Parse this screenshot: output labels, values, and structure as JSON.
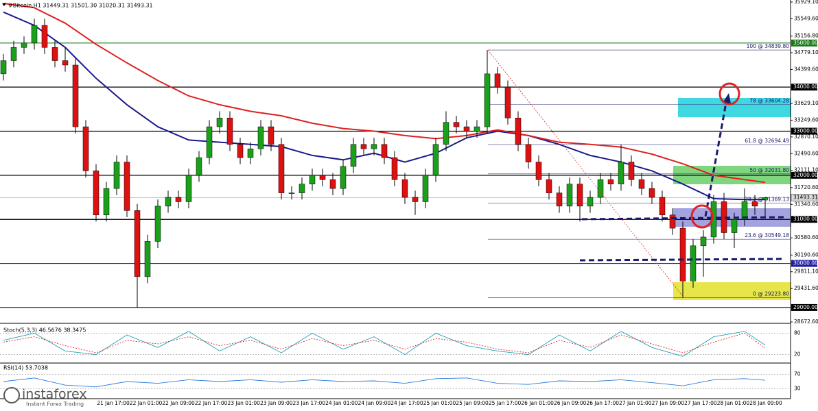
{
  "chart_data": {
    "type": "candlestick",
    "title": "#Bitcoin,H1  31449.31 31501.30 31020.31 31493.31",
    "ylim": [
      28672.6,
      35929.1
    ],
    "yticks": [
      {
        "value": 35929.1,
        "label": "35929.10"
      },
      {
        "value": 35549.6,
        "label": "35549.60"
      },
      {
        "value": 35156.8,
        "label": "35156.80"
      },
      {
        "value": 34779.1,
        "label": "34779.10"
      },
      {
        "value": 34399.6,
        "label": "34399.60"
      },
      {
        "value": 33629.1,
        "label": "33629.10"
      },
      {
        "value": 33249.6,
        "label": "33249.60"
      },
      {
        "value": 32870.1,
        "label": "32870.10"
      },
      {
        "value": 32490.6,
        "label": "32490.60"
      },
      {
        "value": 32111.1,
        "label": "32111.10"
      },
      {
        "value": 31720.6,
        "label": "31720.60"
      },
      {
        "value": 31340.6,
        "label": "31340.60"
      },
      {
        "value": 30580.6,
        "label": "30580.60"
      },
      {
        "value": 30190.6,
        "label": "30190.60"
      },
      {
        "value": 29811.1,
        "label": "29811.10"
      },
      {
        "value": 29431.6,
        "label": "29431.60"
      },
      {
        "value": 28672.6,
        "label": "28672.60"
      }
    ],
    "categories": [
      "21 Jan 17:00",
      "22 Jan 01:00",
      "22 Jan 09:00",
      "22 Jan 17:00",
      "23 Jan 01:00",
      "23 Jan 09:00",
      "23 Jan 17:00",
      "24 Jan 01:00",
      "24 Jan 09:00",
      "24 Jan 17:00",
      "25 Jan 01:00",
      "25 Jan 09:00",
      "25 Jan 17:00",
      "26 Jan 01:00",
      "26 Jan 09:00",
      "26 Jan 17:00",
      "27 Jan 01:00",
      "27 Jan 09:00",
      "27 Jan 17:00",
      "28 Jan 01:00",
      "28 Jan 09:00"
    ],
    "up_color": "#1aa01a",
    "down_color": "#dd1111",
    "ohlc": [
      [
        34300,
        34750,
        34150,
        34600
      ],
      [
        34600,
        35050,
        34450,
        34900
      ],
      [
        34900,
        35150,
        34750,
        35000
      ],
      [
        35000,
        35550,
        34850,
        35400
      ],
      [
        35400,
        35550,
        34750,
        34900
      ],
      [
        34900,
        35050,
        34450,
        34600
      ],
      [
        34600,
        34900,
        34350,
        34500
      ],
      [
        34500,
        34650,
        32950,
        33100
      ],
      [
        33100,
        33250,
        31950,
        32100
      ],
      [
        32100,
        32250,
        30950,
        31100
      ],
      [
        31100,
        31850,
        30950,
        31700
      ],
      [
        31700,
        32450,
        31550,
        32300
      ],
      [
        32300,
        32450,
        31050,
        31200
      ],
      [
        31200,
        31350,
        28990,
        29700
      ],
      [
        29700,
        30650,
        29550,
        30500
      ],
      [
        30500,
        31450,
        30350,
        31300
      ],
      [
        31300,
        31650,
        31150,
        31500
      ],
      [
        31500,
        31650,
        31250,
        31400
      ],
      [
        31400,
        32150,
        31250,
        32000
      ],
      [
        32000,
        32550,
        31850,
        32400
      ],
      [
        32400,
        33250,
        32250,
        33100
      ],
      [
        33100,
        33450,
        32950,
        33300
      ],
      [
        33300,
        33450,
        32550,
        32700
      ],
      [
        32700,
        32850,
        32250,
        32400
      ],
      [
        32400,
        32750,
        32250,
        32600
      ],
      [
        32600,
        33250,
        32450,
        33100
      ],
      [
        33100,
        33250,
        32550,
        32700
      ],
      [
        32700,
        32850,
        31450,
        31600
      ],
      [
        31600,
        31750,
        31450,
        31600
      ],
      [
        31600,
        31950,
        31450,
        31800
      ],
      [
        31800,
        32150,
        31650,
        32000
      ],
      [
        32000,
        32150,
        31750,
        31900
      ],
      [
        31900,
        32050,
        31550,
        31700
      ],
      [
        31700,
        32350,
        31550,
        32200
      ],
      [
        32200,
        32850,
        32050,
        32700
      ],
      [
        32700,
        32850,
        32450,
        32600
      ],
      [
        32600,
        32850,
        32450,
        32700
      ],
      [
        32700,
        32850,
        32250,
        32400
      ],
      [
        32400,
        32550,
        31750,
        31900
      ],
      [
        31900,
        32050,
        31350,
        31500
      ],
      [
        31500,
        31650,
        31100,
        31400
      ],
      [
        31400,
        32150,
        31250,
        32000
      ],
      [
        32000,
        32850,
        31850,
        32700
      ],
      [
        32700,
        33450,
        32550,
        33200
      ],
      [
        33200,
        33350,
        32950,
        33100
      ],
      [
        33100,
        33250,
        32850,
        33000
      ],
      [
        33000,
        33250,
        32850,
        33100
      ],
      [
        33100,
        34839.8,
        32950,
        34300
      ],
      [
        34300,
        34450,
        33850,
        34000
      ],
      [
        34000,
        34150,
        33150,
        33300
      ],
      [
        33300,
        33450,
        32550,
        32700
      ],
      [
        32700,
        32850,
        32150,
        32300
      ],
      [
        32300,
        32450,
        31750,
        31900
      ],
      [
        31900,
        32050,
        31450,
        31600
      ],
      [
        31600,
        31750,
        31150,
        31300
      ],
      [
        31300,
        31950,
        31150,
        31800
      ],
      [
        31800,
        31950,
        30950,
        31300
      ],
      [
        31300,
        31650,
        31150,
        31500
      ],
      [
        31500,
        32050,
        31350,
        31900
      ],
      [
        31900,
        32050,
        31650,
        31800
      ],
      [
        31800,
        32700,
        31650,
        32300
      ],
      [
        32300,
        32450,
        31750,
        31900
      ],
      [
        31900,
        32050,
        31550,
        31700
      ],
      [
        31700,
        31850,
        31350,
        31500
      ],
      [
        31500,
        31650,
        30950,
        31100
      ],
      [
        31100,
        31250,
        30650,
        30800
      ],
      [
        30800,
        30950,
        29223.8,
        29600
      ],
      [
        29600,
        30550,
        29450,
        30400
      ],
      [
        30400,
        30750,
        29700,
        30600
      ],
      [
        30600,
        31550,
        30450,
        31400
      ],
      [
        31400,
        31600,
        30550,
        30700
      ],
      [
        30700,
        31150,
        30350,
        31000
      ],
      [
        31000,
        31700,
        30850,
        31400
      ],
      [
        31400,
        31550,
        31100,
        31300
      ],
      [
        31449.31,
        31501.3,
        31020.31,
        31493.31
      ]
    ],
    "x": [
      0,
      3,
      6,
      9,
      12,
      15,
      18,
      21,
      24,
      27,
      30,
      33,
      36,
      39,
      42,
      45,
      48,
      51,
      54,
      57,
      60,
      63,
      66,
      69,
      72,
      74
    ],
    "series": [
      {
        "color": "#1a1a8c",
        "values": [
          35700,
          35400,
          34900,
          34200,
          33600,
          33100,
          32800,
          32750,
          32700,
          32650,
          32450,
          32350,
          32500,
          32300,
          32500,
          32850,
          33000,
          32900,
          32700,
          32450,
          32300,
          32100,
          31800,
          31470,
          31450,
          31450
        ]
      },
      {
        "color": "#e02020",
        "values": [
          35900,
          35800,
          35450,
          34970,
          34550,
          34150,
          33800,
          33600,
          33450,
          33350,
          33180,
          33060,
          33000,
          32900,
          32830,
          32900,
          33030,
          32900,
          32750,
          32700,
          32640,
          32480,
          32260,
          32000,
          31900,
          31840
        ]
      }
    ],
    "levels": [
      {
        "value": 35000,
        "label": "35000.00",
        "color": "#1a7a1a"
      },
      {
        "value": 34000,
        "label": "34000.00",
        "color": "#000000"
      },
      {
        "value": 33000,
        "label": "33000.00",
        "color": "#000000"
      },
      {
        "value": 32000,
        "label": "32000.00",
        "color": "#000000"
      },
      {
        "value": 31000,
        "label": "31000.00",
        "color": "#000000"
      },
      {
        "value": 30000,
        "label": "30000.00",
        "color": "#1f1fa0"
      },
      {
        "value": 29000,
        "label": "29000.00",
        "color": "#000000"
      }
    ],
    "current_price": {
      "value": 31493.31,
      "label": "31493.31"
    },
    "fibonacci": [
      {
        "value": 34839.8,
        "label": "100 @ 34839.80"
      },
      {
        "value": 33604.28,
        "label": "78 @ 33604.28"
      },
      {
        "value": 32694.49,
        "label": "61.8 @ 32694.49"
      },
      {
        "value": 32031.8,
        "label": "50 @ 32031.80"
      },
      {
        "value": 31369.13,
        "label": "38.2 @ 31369.13"
      },
      {
        "value": 30549.18,
        "label": "23.6 @ 30549.18"
      },
      {
        "value": 29223.8,
        "label": "0 @ 29223.80"
      }
    ],
    "stoch": {
      "title": "Stoch(5,3,3) 46.5676 38.3475",
      "ylim": [
        0,
        100
      ],
      "yticks": [
        80,
        20
      ],
      "k": [
        60,
        80,
        30,
        20,
        75,
        40,
        85,
        30,
        70,
        25,
        80,
        35,
        70,
        20,
        80,
        45,
        30,
        20,
        75,
        30,
        85,
        40,
        15,
        70,
        85,
        46.5676
      ],
      "d": [
        55,
        70,
        45,
        25,
        60,
        50,
        70,
        45,
        60,
        35,
        65,
        45,
        60,
        35,
        65,
        55,
        35,
        25,
        60,
        40,
        75,
        50,
        25,
        55,
        80,
        38.3475
      ]
    },
    "rsi": {
      "title": "RSI(14) 53.7038",
      "ylim": [
        0,
        100
      ],
      "yticks": [
        70,
        30
      ],
      "values": [
        50,
        60,
        40,
        35,
        50,
        45,
        55,
        50,
        55,
        48,
        55,
        50,
        52,
        45,
        58,
        60,
        45,
        42,
        52,
        50,
        55,
        47,
        38,
        55,
        58,
        53.7038
      ]
    }
  },
  "branding": {
    "name": "instaforex",
    "tagline": "Instant Forex Trading"
  }
}
